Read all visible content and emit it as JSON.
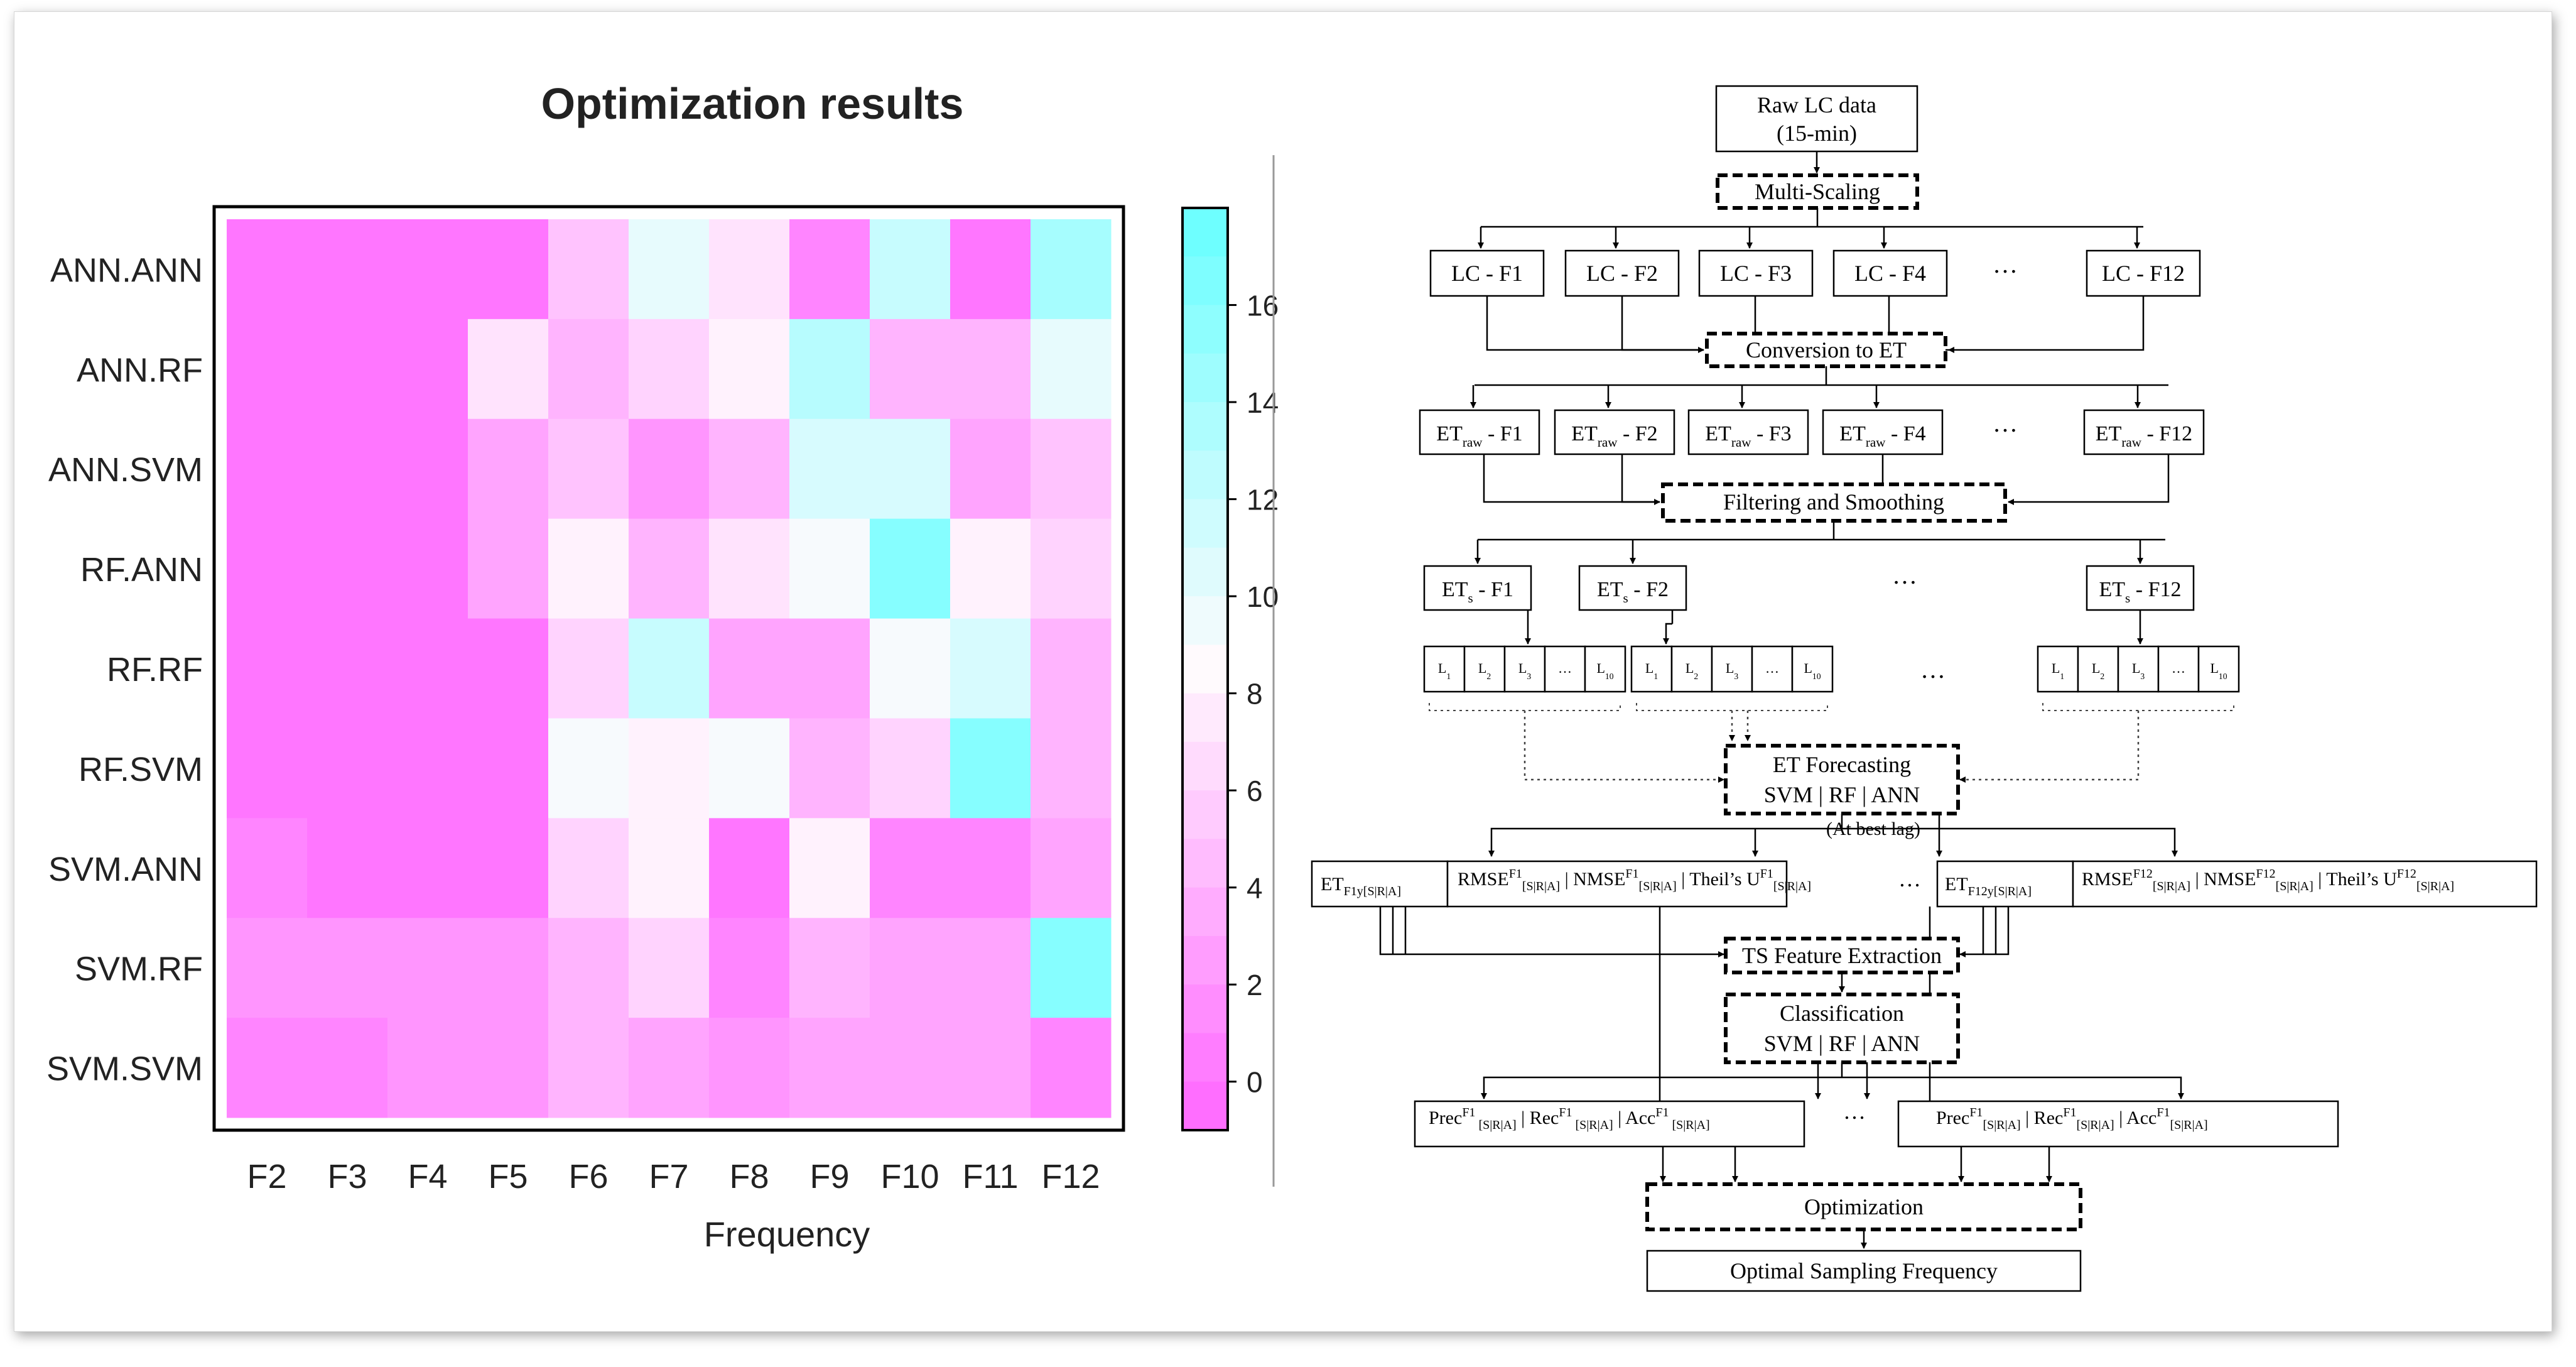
{
  "chart_data": {
    "type": "heatmap",
    "title": "Optimization results",
    "xlabel": "Frequency",
    "ylabel": "",
    "x_categories": [
      "F2",
      "F3",
      "F4",
      "F5",
      "F6",
      "F7",
      "F8",
      "F9",
      "F10",
      "F11",
      "F12"
    ],
    "y_categories": [
      "ANN.ANN",
      "ANN.RF",
      "ANN.SVM",
      "RF.ANN",
      "RF.RF",
      "RF.SVM",
      "SVM.ANN",
      "SVM.RF",
      "SVM.SVM"
    ],
    "values": [
      [
        0,
        0,
        0,
        0,
        5,
        10,
        7,
        1,
        12,
        0,
        14
      ],
      [
        0,
        0,
        0,
        7,
        4,
        6,
        8,
        13,
        4,
        4,
        10
      ],
      [
        0,
        0,
        0,
        3,
        5,
        2,
        4,
        11,
        11,
        3,
        5
      ],
      [
        0,
        0,
        0,
        3,
        8,
        4,
        7,
        9,
        16,
        8,
        6
      ],
      [
        0,
        0,
        0,
        0,
        6,
        12,
        3,
        3,
        9,
        11,
        4
      ],
      [
        0,
        0,
        0,
        0,
        9,
        8,
        9,
        4,
        6,
        16,
        4
      ],
      [
        1,
        0,
        0,
        0,
        6,
        8,
        0,
        8,
        1,
        1,
        3
      ],
      [
        2,
        2,
        2,
        2,
        4,
        6,
        1,
        4,
        3,
        3,
        16
      ],
      [
        1,
        1,
        2,
        2,
        4,
        3,
        2,
        3,
        3,
        3,
        1
      ]
    ],
    "colorbar_ticks": [
      0,
      2,
      4,
      6,
      8,
      10,
      12,
      14,
      16
    ],
    "colorbar_range": [
      -1,
      18
    ],
    "colors": {
      "low": "#ff66ff",
      "mid": "#fffafd",
      "high": "#66ffff"
    }
  },
  "flowchart": {
    "raw": [
      "Raw LC data",
      "(15-min)"
    ],
    "multiscaling": "Multi-Scaling",
    "lc": [
      "LC - F1",
      "LC - F2",
      "LC - F3",
      "LC - F4",
      "…",
      "LC - F12"
    ],
    "conversion": "Conversion to ET",
    "et_raw": [
      {
        "base": "ET",
        "sub": "raw",
        "rest": " - F1"
      },
      {
        "base": "ET",
        "sub": "raw",
        "rest": " - F2"
      },
      {
        "base": "ET",
        "sub": "raw",
        "rest": " - F3"
      },
      {
        "base": "ET",
        "sub": "raw",
        "rest": " - F4"
      },
      {
        "base": "…",
        "sub": "",
        "rest": ""
      },
      {
        "base": "ET",
        "sub": "raw",
        "rest": " - F12"
      }
    ],
    "filtering": "Filtering and Smoothing",
    "ets": [
      {
        "base": "ET",
        "sub": "s",
        "rest": " - F1"
      },
      {
        "base": "ET",
        "sub": "s",
        "rest": " - F2"
      },
      {
        "base": "…",
        "sub": "",
        "rest": ""
      },
      {
        "base": "ET",
        "sub": "s",
        "rest": " - F12"
      }
    ],
    "lags": [
      "L",
      "L",
      "L",
      "…",
      "L"
    ],
    "lag_subs": [
      "1",
      "2",
      "3",
      "",
      "10"
    ],
    "lag_ellipsis": "…",
    "forecasting": [
      "ET Forecasting",
      "SVM | RF | ANN"
    ],
    "best_lag": "(At best lag)",
    "metrics_ellipsis": "…",
    "features": "TS Feature Extraction",
    "classification": [
      "Classification",
      "SVM | RF | ANN"
    ],
    "prec_ellipsis": "…",
    "optimization": "Optimization",
    "optimal": "Optimal Sampling Frequency"
  }
}
